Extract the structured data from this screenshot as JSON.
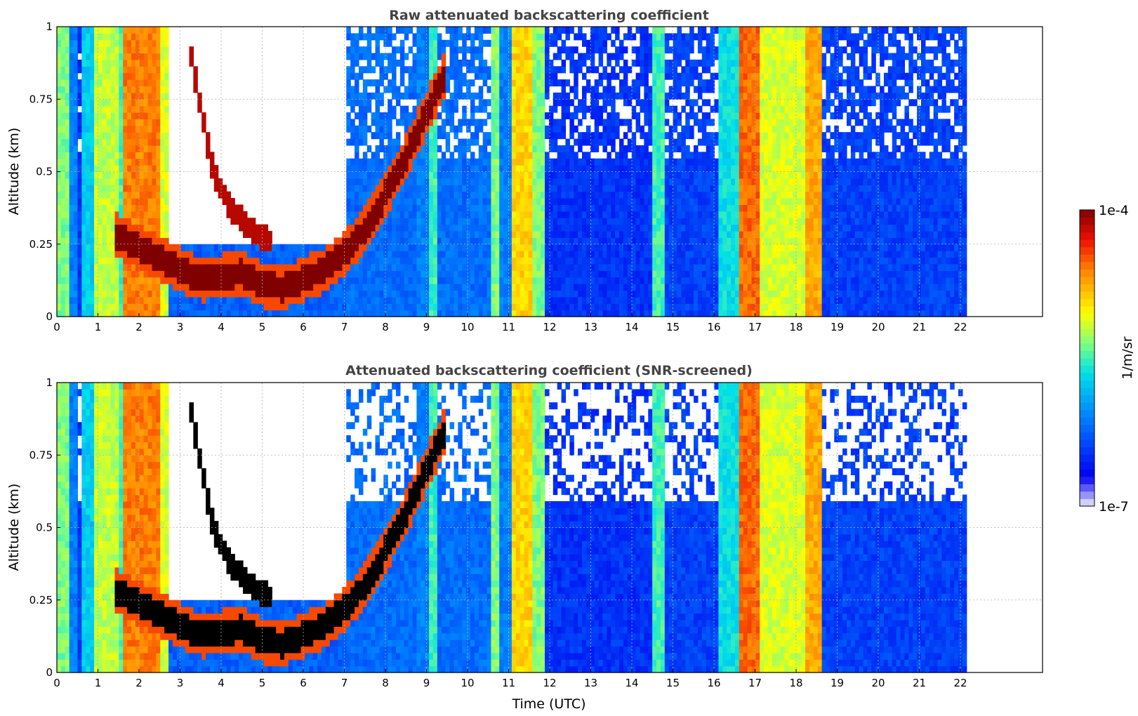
{
  "chart_data": [
    {
      "type": "heatmap",
      "title": "Raw attenuated backscattering coefficient",
      "xlabel": "",
      "ylabel": "Altitude (km)",
      "xlim": [
        0,
        24
      ],
      "ylim": [
        0,
        1
      ],
      "x_ticks": [
        "0",
        "1",
        "2",
        "3",
        "4",
        "5",
        "6",
        "7",
        "8",
        "9",
        "10",
        "11",
        "12",
        "13",
        "14",
        "15",
        "16",
        "17",
        "18",
        "19",
        "20",
        "21",
        "22"
      ],
      "y_ticks": [
        "0",
        "0.25",
        "0.5",
        "0.75",
        "1"
      ],
      "grid": true,
      "data_end_x": 22.15,
      "screened": false,
      "backgrounds": [
        {
          "x0": 0.0,
          "x1": 0.35,
          "level": 0.55
        },
        {
          "x0": 0.35,
          "x1": 0.5,
          "level": 0.3
        },
        {
          "x0": 0.5,
          "x1": 0.62,
          "level": 0.18
        },
        {
          "x0": 0.62,
          "x1": 0.9,
          "level": 0.42
        },
        {
          "x0": 0.9,
          "x1": 1.5,
          "level": 0.6
        },
        {
          "x0": 1.5,
          "x1": 1.6,
          "level": 0.5
        },
        {
          "x0": 1.6,
          "x1": 2.5,
          "level": 0.8
        },
        {
          "x0": 2.5,
          "x1": 2.7,
          "level": 0.62
        },
        {
          "x0": 2.7,
          "x1": 7.0,
          "level": 0.25,
          "fade_above": 0.2
        },
        {
          "x0": 7.0,
          "x1": 8.8,
          "level": 0.27
        },
        {
          "x0": 8.8,
          "x1": 9.1,
          "level": 0.3
        },
        {
          "x0": 9.1,
          "x1": 9.3,
          "level": 0.5
        },
        {
          "x0": 9.3,
          "x1": 10.6,
          "level": 0.27
        },
        {
          "x0": 10.6,
          "x1": 10.8,
          "level": 0.55
        },
        {
          "x0": 10.8,
          "x1": 11.05,
          "level": 0.3
        },
        {
          "x0": 11.05,
          "x1": 11.6,
          "level": 0.7
        },
        {
          "x0": 11.6,
          "x1": 11.9,
          "level": 0.55
        },
        {
          "x0": 11.9,
          "x1": 14.5,
          "level": 0.18
        },
        {
          "x0": 14.5,
          "x1": 14.8,
          "level": 0.5
        },
        {
          "x0": 14.8,
          "x1": 16.1,
          "level": 0.2
        },
        {
          "x0": 16.1,
          "x1": 16.6,
          "level": 0.45
        },
        {
          "x0": 16.6,
          "x1": 17.1,
          "level": 0.82
        },
        {
          "x0": 17.1,
          "x1": 18.2,
          "level": 0.62
        },
        {
          "x0": 18.2,
          "x1": 18.6,
          "level": 0.75
        },
        {
          "x0": 18.6,
          "x1": 22.15,
          "level": 0.2
        }
      ],
      "layer_trace": [
        {
          "x": 1.45,
          "y": 0.28
        },
        {
          "x": 2.0,
          "y": 0.24
        },
        {
          "x": 2.8,
          "y": 0.18
        },
        {
          "x": 3.5,
          "y": 0.13
        },
        {
          "x": 4.0,
          "y": 0.14
        },
        {
          "x": 4.5,
          "y": 0.15
        },
        {
          "x": 5.0,
          "y": 0.11
        },
        {
          "x": 5.5,
          "y": 0.1
        },
        {
          "x": 6.0,
          "y": 0.13
        },
        {
          "x": 6.5,
          "y": 0.16
        },
        {
          "x": 7.0,
          "y": 0.22
        },
        {
          "x": 7.5,
          "y": 0.3
        },
        {
          "x": 8.0,
          "y": 0.42
        },
        {
          "x": 8.5,
          "y": 0.55
        },
        {
          "x": 9.0,
          "y": 0.7
        },
        {
          "x": 9.5,
          "y": 0.85
        }
      ],
      "descending_trace": [
        {
          "x": 3.2,
          "y": 0.95
        },
        {
          "x": 3.5,
          "y": 0.72
        },
        {
          "x": 3.8,
          "y": 0.5
        },
        {
          "x": 4.2,
          "y": 0.38
        },
        {
          "x": 4.7,
          "y": 0.3
        },
        {
          "x": 5.2,
          "y": 0.26
        }
      ],
      "colorbar": {
        "min_label": "1e-7",
        "max_label": "1e-4",
        "unit": "1/m/sr"
      }
    },
    {
      "type": "heatmap",
      "title": "Attenuated backscattering coefficient (SNR-screened)",
      "xlabel": "Time (UTC)",
      "ylabel": "Altitude (km)",
      "xlim": [
        0,
        24
      ],
      "ylim": [
        0,
        1
      ],
      "x_ticks": [
        "0",
        "1",
        "2",
        "3",
        "4",
        "5",
        "6",
        "7",
        "8",
        "9",
        "10",
        "11",
        "12",
        "13",
        "14",
        "15",
        "16",
        "17",
        "18",
        "19",
        "20",
        "21",
        "22"
      ],
      "y_ticks": [
        "0",
        "0.25",
        "0.5",
        "0.75",
        "1"
      ],
      "grid": true,
      "data_end_x": 22.15,
      "screened": true,
      "colorbar": {
        "min_label": "1e-7",
        "max_label": "1e-4",
        "unit": "1/m/sr"
      }
    }
  ]
}
